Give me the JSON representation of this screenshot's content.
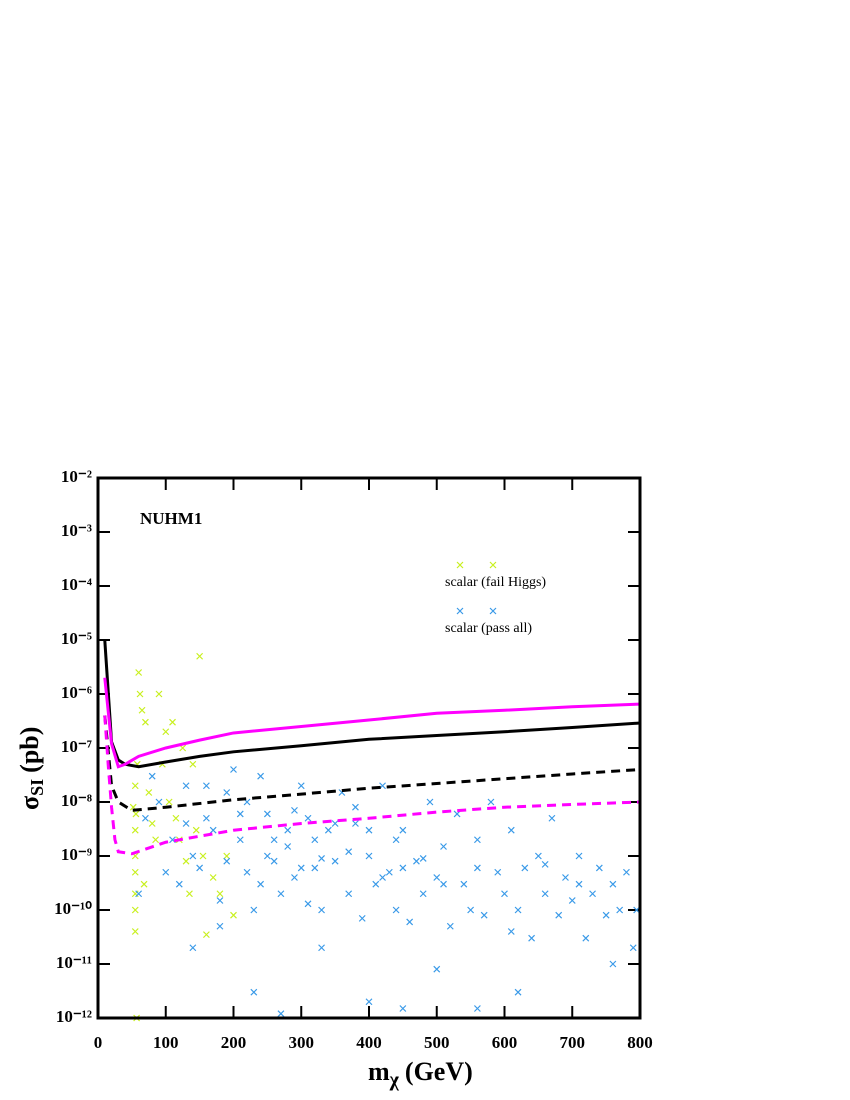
{
  "chart_data": {
    "type": "scatter",
    "annotation": "NUHM1",
    "xlabel": {
      "symbol": "m",
      "subscript": "χ",
      "unit": "(GeV)"
    },
    "ylabel": {
      "symbol": "σ",
      "subscript": "SI",
      "unit": "(pb)"
    },
    "xlim": [
      0,
      800
    ],
    "xticks": [
      0,
      100,
      200,
      300,
      400,
      500,
      600,
      700,
      800
    ],
    "ylim": [
      1e-12,
      0.01
    ],
    "log_y": true,
    "yticks": [
      {
        "value": 1e-12,
        "label": "10⁻¹²"
      },
      {
        "value": 1e-11,
        "label": "10⁻¹¹"
      },
      {
        "value": 1e-10,
        "label": "10⁻¹⁰"
      },
      {
        "value": 1e-09,
        "label": "10⁻⁹"
      },
      {
        "value": 1e-08,
        "label": "10⁻⁸"
      },
      {
        "value": 1e-07,
        "label": "10⁻⁷"
      },
      {
        "value": 1e-06,
        "label": "10⁻⁶"
      },
      {
        "value": 1e-05,
        "label": "10⁻⁵"
      },
      {
        "value": 0.0001,
        "label": "10⁻⁴"
      },
      {
        "value": 0.001,
        "label": "10⁻³"
      },
      {
        "value": 0.01,
        "label": "10⁻²"
      }
    ],
    "legend": "upper right",
    "series": [
      {
        "name": "scalar (fail Higgs)",
        "color": "#c8f01e",
        "marker": "x",
        "x": [
          55,
          55,
          55,
          55,
          55,
          55,
          55,
          56,
          57,
          60,
          62,
          65,
          70,
          75,
          80,
          85,
          90,
          95,
          100,
          105,
          110,
          115,
          120,
          125,
          130,
          135,
          140,
          145,
          150,
          155,
          160,
          170,
          180,
          190,
          200,
          52,
          58,
          68
        ],
        "values": [
          1e-09,
          5e-10,
          2e-10,
          1e-10,
          4e-11,
          3e-09,
          2e-08,
          6e-09,
          1e-12,
          2.5e-06,
          1e-06,
          5e-07,
          3e-07,
          1.5e-08,
          4e-09,
          2e-09,
          1e-06,
          5e-08,
          2e-07,
          1e-08,
          3e-07,
          5e-09,
          2e-09,
          1e-07,
          8e-10,
          2e-10,
          5e-08,
          3e-09,
          5e-06,
          1e-09,
          3.5e-11,
          4e-10,
          2e-10,
          1e-09,
          8e-11,
          8e-09,
          5e-08,
          3e-10
        ]
      },
      {
        "name": "scalar (pass all)",
        "color": "#3a9ae8",
        "marker": "x",
        "x": [
          60,
          70,
          80,
          90,
          100,
          110,
          120,
          130,
          140,
          150,
          160,
          170,
          180,
          190,
          200,
          210,
          220,
          230,
          240,
          250,
          260,
          270,
          280,
          290,
          300,
          310,
          320,
          330,
          340,
          350,
          360,
          370,
          380,
          390,
          400,
          410,
          420,
          430,
          440,
          450,
          460,
          470,
          480,
          490,
          500,
          510,
          520,
          530,
          540,
          550,
          560,
          570,
          580,
          590,
          600,
          610,
          620,
          630,
          640,
          650,
          660,
          670,
          680,
          690,
          700,
          710,
          720,
          730,
          740,
          750,
          760,
          770,
          780,
          790,
          795,
          270,
          140,
          230,
          250,
          280,
          320,
          300,
          350,
          210,
          190,
          160,
          130,
          220,
          380,
          400,
          450,
          260,
          330,
          420,
          370,
          290,
          240,
          310,
          440,
          480,
          510,
          560,
          610,
          660,
          710,
          760,
          450,
          560,
          400,
          500,
          620,
          330,
          180
        ],
        "values": [
          2e-10,
          5e-09,
          3e-08,
          1e-08,
          5e-10,
          2e-09,
          3e-10,
          4e-09,
          1e-09,
          6e-10,
          2e-08,
          3e-09,
          1.5e-10,
          8e-10,
          4e-08,
          2e-09,
          5e-10,
          1e-10,
          3e-08,
          6e-09,
          8e-10,
          2e-10,
          1.5e-09,
          4e-10,
          2e-08,
          5e-09,
          6e-10,
          1e-10,
          3e-09,
          8e-10,
          1.5e-08,
          2e-10,
          4e-09,
          7e-11,
          1e-09,
          3e-10,
          2e-08,
          5e-10,
          1e-10,
          3e-09,
          6e-11,
          8e-10,
          2e-10,
          1e-08,
          4e-10,
          1.5e-09,
          5e-11,
          6e-09,
          3e-10,
          1e-10,
          2e-09,
          8e-11,
          1e-08,
          5e-10,
          2e-10,
          3e-09,
          1e-10,
          6e-10,
          3e-11,
          1e-09,
          2e-10,
          5e-09,
          8e-11,
          4e-10,
          1.5e-10,
          1e-09,
          3e-11,
          2e-10,
          6e-10,
          8e-11,
          3e-10,
          1e-10,
          5e-10,
          2e-11,
          1e-10,
          1.2e-12,
          2e-11,
          3e-12,
          1e-09,
          3e-09,
          2e-09,
          6e-10,
          4e-09,
          6e-09,
          1.5e-08,
          5e-09,
          2e-08,
          1e-08,
          8e-09,
          3e-09,
          6e-10,
          2e-09,
          9e-10,
          4e-10,
          1.2e-09,
          7e-09,
          3e-10,
          1.3e-10,
          2e-09,
          9e-10,
          3e-10,
          6e-10,
          4e-11,
          7e-10,
          3e-10,
          1e-11,
          1.5e-12,
          1.5e-12,
          2e-12,
          8e-12,
          3e-12,
          2e-11,
          5e-11
        ]
      },
      {
        "color": "#000000",
        "marker": "line",
        "dashed": false,
        "x": [
          10,
          20,
          30,
          40,
          60,
          100,
          150,
          200,
          300,
          400,
          500,
          600,
          700,
          800
        ],
        "values": [
          1e-05,
          1.3e-07,
          6e-08,
          5e-08,
          4.5e-08,
          5.5e-08,
          7e-08,
          8.5e-08,
          1.1e-07,
          1.45e-07,
          1.7e-07,
          2e-07,
          2.4e-07,
          2.9e-07
        ]
      },
      {
        "color": "#ff00ff",
        "marker": "line",
        "dashed": false,
        "x": [
          10,
          20,
          30,
          40,
          60,
          100,
          150,
          200,
          300,
          400,
          500,
          600,
          700,
          800
        ],
        "values": [
          2e-06,
          1.2e-07,
          4.5e-08,
          5e-08,
          7e-08,
          1e-07,
          1.4e-07,
          1.9e-07,
          2.5e-07,
          3.3e-07,
          4.4e-07,
          5e-07,
          5.8e-07,
          6.5e-07
        ]
      },
      {
        "color": "#000000",
        "marker": "line",
        "dashed": true,
        "x": [
          10,
          20,
          30,
          50,
          100,
          200,
          300,
          400,
          500,
          600,
          700,
          800
        ],
        "values": [
          4e-07,
          2e-08,
          1e-08,
          7e-09,
          8e-09,
          1.1e-08,
          1.4e-08,
          1.8e-08,
          2.2e-08,
          2.7e-08,
          3.3e-08,
          4e-08
        ]
      },
      {
        "color": "#ff00ff",
        "marker": "line",
        "dashed": true,
        "x": [
          10,
          15,
          20,
          25,
          30,
          50,
          100,
          200,
          300,
          400,
          500,
          600,
          700,
          800
        ],
        "values": [
          4e-07,
          5e-08,
          8e-09,
          2e-09,
          1.2e-09,
          1.1e-09,
          1.8e-09,
          3e-09,
          4e-09,
          5e-09,
          6.5e-09,
          8e-09,
          9e-09,
          1e-08
        ]
      }
    ]
  }
}
